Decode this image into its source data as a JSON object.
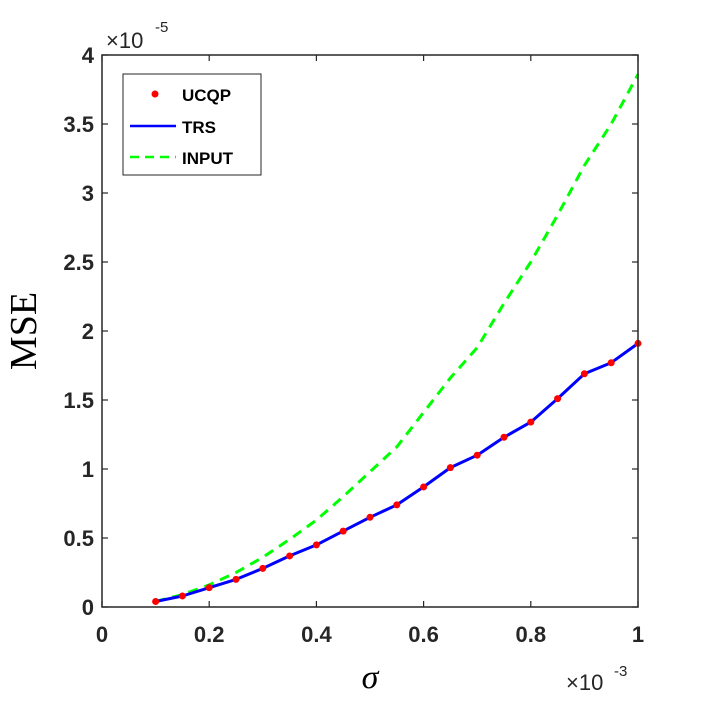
{
  "chart_data": {
    "type": "line",
    "xlabel": "σ",
    "ylabel": "MSE",
    "x_exponent_label": "×10",
    "x_exponent_power": "-3",
    "y_exponent_label": "×10",
    "y_exponent_power": "-5",
    "xlim": [
      0,
      1
    ],
    "ylim": [
      0,
      4
    ],
    "x_ticks": [
      0,
      0.2,
      0.4,
      0.6,
      0.8,
      1
    ],
    "x_tick_labels": [
      "0",
      "0.2",
      "0.4",
      "0.6",
      "0.8",
      "1"
    ],
    "y_ticks": [
      0,
      0.5,
      1,
      1.5,
      2,
      2.5,
      3,
      3.5,
      4
    ],
    "y_tick_labels": [
      "0",
      "0.5",
      "1",
      "1.5",
      "2",
      "2.5",
      "3",
      "3.5",
      "4"
    ],
    "grid": false,
    "legend_position": "top-left",
    "x": [
      0.1,
      0.15,
      0.2,
      0.25,
      0.3,
      0.35,
      0.4,
      0.45,
      0.5,
      0.55,
      0.6,
      0.65,
      0.7,
      0.75,
      0.8,
      0.85,
      0.9,
      0.95,
      1.0
    ],
    "series": [
      {
        "name": "UCQP",
        "style": "markers",
        "color": "#ff0000",
        "values": [
          0.04,
          0.08,
          0.14,
          0.2,
          0.28,
          0.37,
          0.45,
          0.55,
          0.65,
          0.74,
          0.87,
          1.01,
          1.1,
          1.23,
          1.34,
          1.51,
          1.69,
          1.77,
          1.91
        ]
      },
      {
        "name": "TRS",
        "style": "solid",
        "color": "#0000ff",
        "values": [
          0.04,
          0.08,
          0.14,
          0.2,
          0.28,
          0.37,
          0.45,
          0.55,
          0.65,
          0.74,
          0.87,
          1.01,
          1.1,
          1.23,
          1.34,
          1.51,
          1.69,
          1.77,
          1.91
        ]
      },
      {
        "name": "INPUT",
        "style": "dashed",
        "color": "#00ff00",
        "values": [
          0.04,
          0.09,
          0.16,
          0.25,
          0.36,
          0.49,
          0.63,
          0.8,
          0.98,
          1.16,
          1.41,
          1.66,
          1.88,
          2.2,
          2.5,
          2.84,
          3.2,
          3.5,
          3.86
        ]
      }
    ]
  }
}
